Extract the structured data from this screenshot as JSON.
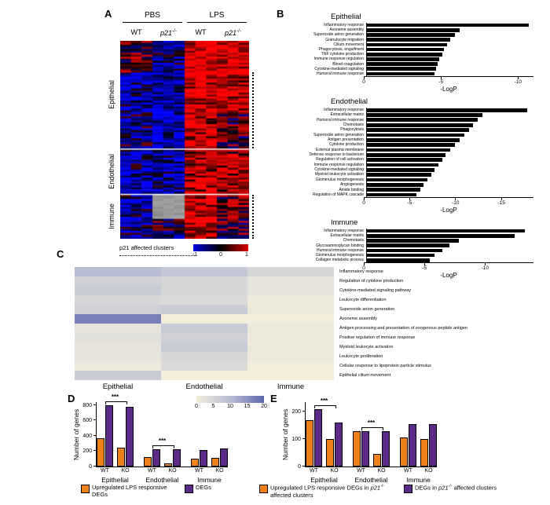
{
  "figure": {
    "panel_labels": {
      "a": "A",
      "b": "B",
      "c": "C",
      "d": "D",
      "e": "E"
    }
  },
  "panel_a": {
    "conditions": [
      "PBS",
      "LPS"
    ],
    "column_labels": [
      "WT",
      "p21-/-",
      "WT",
      "p21-/-"
    ],
    "row_groups": [
      "Epithelial",
      "Endothelial",
      "Immune"
    ],
    "footer_note": "p21 affected clusters",
    "colorbar_ticks": [
      "-1",
      "0",
      "1"
    ]
  },
  "colors": {
    "orange": "#F08019",
    "purple": "#5B2A86",
    "bar_black": "#000000",
    "gray_block": "#9b9b9b",
    "heat_scale": [
      "#f2eedb",
      "#b8bdd4",
      "#5e66ac"
    ]
  },
  "legend_d": {
    "items": [
      {
        "label": "Upregulated LPS responsive DEGs",
        "color": "#F08019"
      },
      {
        "label": "DEGs",
        "color": "#5B2A86"
      }
    ]
  },
  "legend_e": {
    "items": [
      {
        "label": "Upregulated LPS responsive DEGs in p21-/- affected clusters",
        "color": "#F08019"
      },
      {
        "label": "DEGs in p21-/- affected clusters",
        "color": "#5B2A86"
      }
    ]
  },
  "chart_data": [
    {
      "id": "panel_a_heatmap",
      "type": "heatmap",
      "conditions": [
        "PBS",
        "LPS"
      ],
      "columns": [
        "WT",
        "p21-/-",
        "WT",
        "p21-/-"
      ],
      "row_groups": [
        "Epithelial",
        "Endothelial",
        "Immune"
      ],
      "value_range": [
        -1,
        1
      ],
      "blocks": [
        {
          "group": "Epithelial",
          "rows": 16,
          "bias": [
            0.3,
            -0.5,
            0.85,
            0.8
          ],
          "affected": false
        },
        {
          "group": "Epithelial",
          "rows": 20,
          "bias": [
            -0.55,
            -0.65,
            0.75,
            0.7
          ],
          "affected": true
        },
        {
          "group": "Epithelial",
          "rows": 18,
          "bias": [
            -0.35,
            -0.7,
            0.7,
            0.1
          ],
          "affected": true
        },
        {
          "group": "Endothelial",
          "rows": 22,
          "bias": [
            -0.5,
            -0.55,
            0.65,
            0.55
          ],
          "affected": false
        },
        {
          "group": "Immune",
          "rows": 12,
          "bias": [
            -0.5,
            0,
            0.7,
            0.3
          ],
          "affected": true,
          "gray_cols": [
            1
          ]
        },
        {
          "group": "Immune",
          "rows": 10,
          "bias": [
            -0.4,
            -0.2,
            0.6,
            0.1
          ],
          "affected": true
        }
      ]
    },
    {
      "id": "panel_b_epithelial",
      "type": "bar",
      "orientation": "horizontal",
      "title": "Epithelial",
      "xlabel": "-LogP",
      "xticks": [
        0,
        -5,
        -10
      ],
      "axis_max": 11,
      "categories": [
        "Inflammatory response",
        "Axoneme assembly",
        "Superoxide anion generation",
        "Granulocyte migration",
        "Cilium movement",
        "Phagocytosis, engulfment",
        "TNF cytokine production",
        "Immune response regulation",
        "Blood coagulation",
        "Cytokine-mediated signaling",
        "Humoral immune response"
      ],
      "values": [
        10.5,
        6.0,
        5.7,
        5.4,
        5.2,
        5.0,
        4.9,
        4.7,
        4.6,
        4.5,
        4.4
      ]
    },
    {
      "id": "panel_b_endothelial",
      "type": "bar",
      "orientation": "horizontal",
      "title": "Endothelial",
      "xlabel": "-LogP",
      "xticks": [
        0,
        -5,
        -10,
        -15
      ],
      "axis_max": 18.5,
      "categories": [
        "Inflammatory response",
        "Extracellular matrix",
        "Humoral immune response",
        "Chemotaxis",
        "Phagocytosis",
        "Superoxide anion generation",
        "Antigen presentation",
        "Cytokine production",
        "External plasma membrane",
        "Defense response to bacterium",
        "Regulation of cell activation",
        "Immune response regulation",
        "Cytokine-mediated signaling",
        "Myeloid leukocyte activation",
        "Glomerulus morphogenesis",
        "Angiogenesis",
        "Amide binding",
        "Regulation of MAPK cascade"
      ],
      "values": [
        17.5,
        12.6,
        12.1,
        11.6,
        11.1,
        10.6,
        10.1,
        9.6,
        9.1,
        8.6,
        8.2,
        7.8,
        7.4,
        7.0,
        6.6,
        6.2,
        5.8,
        5.4
      ]
    },
    {
      "id": "panel_b_immune",
      "type": "bar",
      "orientation": "horizontal",
      "title": "Immune",
      "xlabel": "-LogP",
      "xticks": [
        0,
        -5,
        -10
      ],
      "axis_max": 14,
      "categories": [
        "Inflammatory response",
        "Extracellular matrix",
        "Chemotaxis",
        "Glycosaminoglycan binding",
        "Humoral immune response",
        "Glomerulus morphogenesis",
        "Collagen metabolic process"
      ],
      "values": [
        13.0,
        12.2,
        7.6,
        6.8,
        6.2,
        5.6,
        5.2
      ]
    },
    {
      "id": "panel_c_heatmap",
      "type": "heatmap",
      "columns": [
        "Epithelial",
        "Endothelial",
        "Immune"
      ],
      "rows": [
        "Inflammatory response",
        "Regulation of cytokine production",
        "Cytokine-mediated signaling pathway",
        "Leukocyte differentiation",
        "Superoxide anion generation",
        "Axoneme assembly",
        "Antigen processing and presentation of exogenous peptide antigen",
        "Positive regulation of immune response",
        "Myeloid leukocyte activation",
        "Leukocyte proliferation",
        "Cellular response to lipoprotein particle stimulus",
        "Epithelial cilium movement"
      ],
      "values": [
        [
          10,
          8,
          5
        ],
        [
          6,
          5,
          2
        ],
        [
          7,
          5,
          2
        ],
        [
          5,
          4,
          1
        ],
        [
          6,
          7,
          1
        ],
        [
          17,
          0,
          0
        ],
        [
          2,
          7,
          1
        ],
        [
          3,
          6,
          1
        ],
        [
          2,
          7,
          1
        ],
        [
          2,
          5,
          1
        ],
        [
          1,
          4,
          0
        ],
        [
          7,
          0,
          0
        ]
      ],
      "scale_ticks": [
        0,
        5,
        10,
        15,
        20
      ],
      "scale_range": [
        0,
        20
      ]
    },
    {
      "id": "panel_d",
      "type": "bar",
      "ylabel": "Number of genes",
      "yticks": [
        0,
        200,
        400,
        600,
        800
      ],
      "axis_max": 840,
      "groups": [
        "Epithelial",
        "Endothelial",
        "Immune"
      ],
      "x_labels": [
        "WT",
        "KO",
        "WT",
        "KO",
        "WT",
        "KO"
      ],
      "series": [
        {
          "name": "Upregulated LPS responsive DEGs",
          "color": "#F08019",
          "values": [
            370,
            250,
            120,
            40,
            100,
            110
          ]
        },
        {
          "name": "DEGs",
          "color": "#5B2A86",
          "values": [
            800,
            780,
            230,
            225,
            215,
            240
          ]
        }
      ],
      "significance": [
        {
          "from": 0,
          "to": 1,
          "label": "***"
        },
        {
          "from": 2,
          "to": 3,
          "label": "***"
        }
      ]
    },
    {
      "id": "panel_e",
      "type": "bar",
      "ylabel": "Number of genes",
      "yticks": [
        0,
        100,
        200
      ],
      "axis_max": 235,
      "groups": [
        "Epithelial",
        "Endothelial",
        "Immune"
      ],
      "x_labels": [
        "WT",
        "KO",
        "WT",
        "KO",
        "WT",
        "KO"
      ],
      "series": [
        {
          "name": "Upregulated LPS responsive DEGs in p21-/- affected clusters",
          "color": "#F08019",
          "values": [
            170,
            100,
            130,
            45,
            105,
            100
          ]
        },
        {
          "name": "DEGs in p21-/- affected clusters",
          "color": "#5B2A86",
          "values": [
            210,
            160,
            128,
            130,
            155,
            155
          ]
        }
      ],
      "significance": [
        {
          "from": 0,
          "to": 1,
          "label": "***"
        },
        {
          "from": 2,
          "to": 3,
          "label": "***"
        }
      ]
    }
  ]
}
